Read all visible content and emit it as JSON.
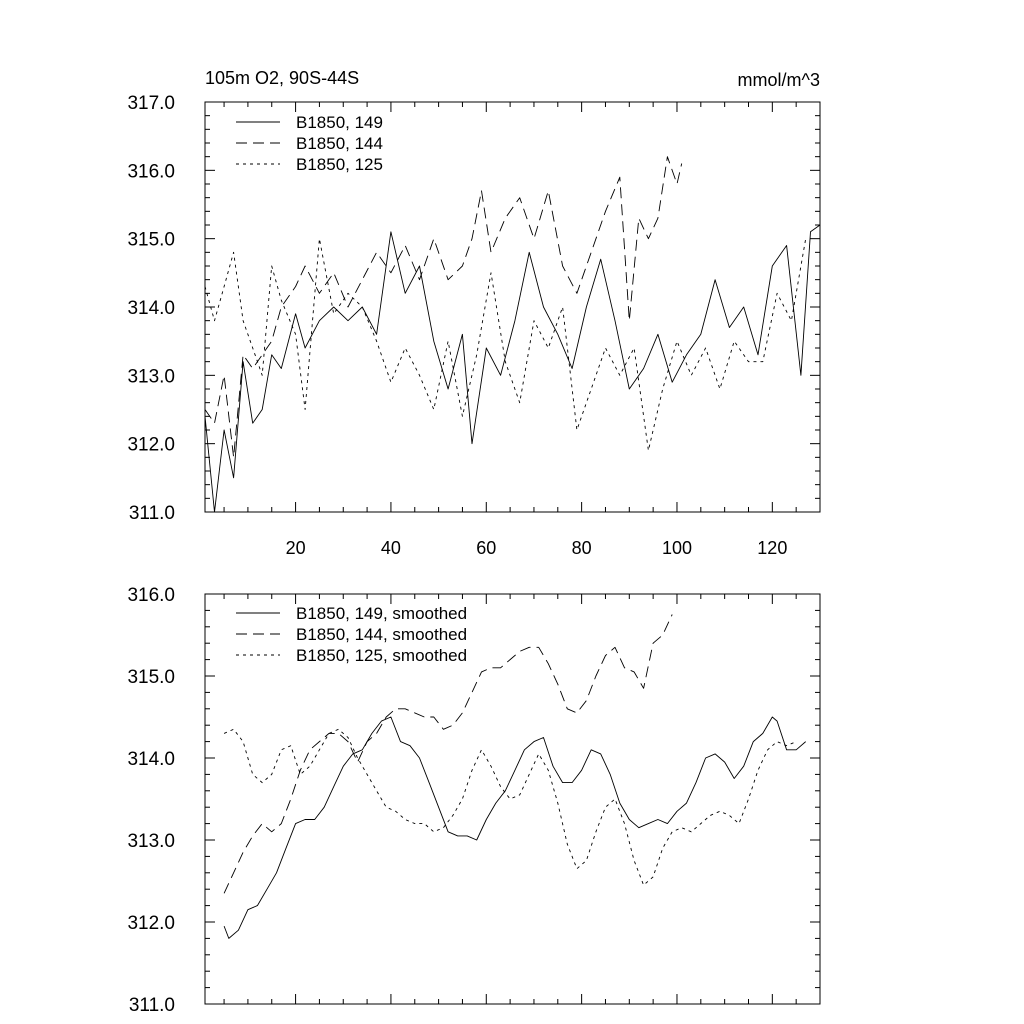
{
  "header": {
    "title": "105m O2, 90S-44S",
    "units": "mmol/m^3"
  },
  "styles": {
    "line_color": "#000000",
    "background": "#ffffff"
  },
  "chart_data": [
    {
      "type": "line",
      "title": "105m O2, 90S-44S",
      "units_label": "mmol/m^3",
      "xlim": [
        1,
        130
      ],
      "ylim": [
        311,
        317
      ],
      "x_ticks": [
        20,
        40,
        60,
        80,
        100,
        120
      ],
      "x_tick_labels": [
        "20",
        "40",
        "60",
        "80",
        "100",
        "120"
      ],
      "y_ticks": [
        311,
        312,
        313,
        314,
        315,
        316,
        317
      ],
      "y_tick_labels": [
        "311.0",
        "312.0",
        "313.0",
        "314.0",
        "315.0",
        "316.0",
        "317.0"
      ],
      "legend_position": "top-left",
      "series": [
        {
          "name": "B1850, 149",
          "style": "solid",
          "x": [
            1,
            3,
            5,
            7,
            9,
            11,
            13,
            15,
            17,
            20,
            22,
            25,
            28,
            31,
            34,
            37,
            40,
            43,
            46,
            49,
            52,
            55,
            57,
            60,
            63,
            66,
            69,
            72,
            75,
            78,
            81,
            84,
            87,
            90,
            93,
            96,
            99,
            102,
            105,
            108,
            111,
            114,
            117,
            120,
            123,
            126,
            128,
            130
          ],
          "values": [
            312.4,
            311.0,
            312.2,
            311.5,
            313.2,
            312.3,
            312.5,
            313.3,
            313.1,
            313.9,
            313.4,
            313.8,
            314.0,
            313.8,
            314.0,
            313.6,
            315.1,
            314.2,
            314.6,
            313.5,
            312.8,
            313.6,
            312.0,
            313.4,
            313.0,
            313.8,
            314.8,
            314.0,
            313.6,
            313.1,
            314.0,
            314.7,
            313.8,
            312.8,
            313.1,
            313.6,
            312.9,
            313.3,
            313.6,
            314.4,
            313.7,
            314.0,
            313.3,
            314.6,
            314.9,
            313.0,
            315.1,
            315.2
          ]
        },
        {
          "name": "B1850, 144",
          "style": "dashed",
          "x": [
            1,
            3,
            5,
            7,
            9,
            11,
            13,
            15,
            17,
            20,
            22,
            25,
            28,
            31,
            34,
            37,
            40,
            43,
            46,
            49,
            52,
            55,
            57,
            59,
            61,
            64,
            67,
            70,
            73,
            76,
            79,
            82,
            85,
            88,
            90,
            92,
            94,
            96,
            98,
            100,
            101
          ],
          "values": [
            312.5,
            312.3,
            313.0,
            311.8,
            313.3,
            313.1,
            313.3,
            313.5,
            314.0,
            314.3,
            314.6,
            314.2,
            314.5,
            314.0,
            314.4,
            314.8,
            314.5,
            314.9,
            314.4,
            315.0,
            314.4,
            314.6,
            315.0,
            315.7,
            314.8,
            315.3,
            315.6,
            315.0,
            315.7,
            314.6,
            314.2,
            314.8,
            315.4,
            315.9,
            313.8,
            315.3,
            315.0,
            315.3,
            316.2,
            315.8,
            316.1
          ]
        },
        {
          "name": "B1850, 125",
          "style": "dotted",
          "x": [
            1,
            3,
            5,
            7,
            9,
            11,
            13,
            15,
            17,
            20,
            22,
            25,
            28,
            31,
            34,
            37,
            40,
            43,
            46,
            49,
            52,
            55,
            58,
            61,
            64,
            67,
            70,
            73,
            76,
            79,
            82,
            85,
            88,
            91,
            94,
            97,
            100,
            103,
            106,
            109,
            112,
            115,
            118,
            121,
            124,
            127
          ],
          "values": [
            314.3,
            313.8,
            314.3,
            314.8,
            313.8,
            313.4,
            313.0,
            314.6,
            314.1,
            313.6,
            312.5,
            315.0,
            313.9,
            314.2,
            314.0,
            313.5,
            312.9,
            313.4,
            313.0,
            312.5,
            313.5,
            312.4,
            313.3,
            314.5,
            313.2,
            312.6,
            313.8,
            313.4,
            314.0,
            312.2,
            312.8,
            313.4,
            313.0,
            313.4,
            311.9,
            312.8,
            313.5,
            313.0,
            313.4,
            312.8,
            313.5,
            313.2,
            313.2,
            314.2,
            313.8,
            315.0
          ]
        }
      ]
    },
    {
      "type": "line",
      "xlim": [
        1,
        130
      ],
      "ylim": [
        311,
        316
      ],
      "x_ticks": [
        20,
        40,
        60,
        80,
        100,
        120
      ],
      "y_ticks": [
        311,
        312,
        313,
        314,
        315,
        316
      ],
      "y_tick_labels": [
        "311.0",
        "312.0",
        "313.0",
        "314.0",
        "315.0",
        "316.0"
      ],
      "legend_position": "top-left",
      "series": [
        {
          "name": "B1850, 149, smoothed",
          "style": "solid",
          "x": [
            5,
            6,
            8,
            10,
            12,
            14,
            16,
            18,
            20,
            22,
            24,
            26,
            28,
            30,
            32,
            34,
            36,
            38,
            40,
            42,
            44,
            46,
            48,
            50,
            52,
            54,
            56,
            58,
            60,
            62,
            64,
            66,
            68,
            70,
            72,
            74,
            76,
            78,
            80,
            82,
            84,
            86,
            88,
            90,
            92,
            94,
            96,
            98,
            100,
            102,
            104,
            106,
            108,
            110,
            112,
            114,
            116,
            118,
            120,
            121,
            123,
            125,
            127
          ],
          "values": [
            311.95,
            311.8,
            311.9,
            312.15,
            312.2,
            312.4,
            312.6,
            312.9,
            313.2,
            313.25,
            313.25,
            313.4,
            313.65,
            313.9,
            314.05,
            314.1,
            314.3,
            314.45,
            314.5,
            314.2,
            314.15,
            314.0,
            313.7,
            313.4,
            313.1,
            313.05,
            313.05,
            313.0,
            313.25,
            313.45,
            313.6,
            313.85,
            314.1,
            314.2,
            314.25,
            313.9,
            313.7,
            313.7,
            313.85,
            314.1,
            314.05,
            313.8,
            313.45,
            313.25,
            313.15,
            313.2,
            313.25,
            313.2,
            313.35,
            313.45,
            313.7,
            314.0,
            314.05,
            313.95,
            313.75,
            313.9,
            314.2,
            314.3,
            314.5,
            314.45,
            314.1,
            314.1,
            314.2
          ]
        },
        {
          "name": "B1850, 144, smoothed",
          "style": "dashed",
          "x": [
            5,
            7,
            9,
            11,
            13,
            15,
            17,
            19,
            21,
            23,
            25,
            27,
            29,
            31,
            33,
            35,
            37,
            39,
            41,
            43,
            45,
            47,
            49,
            51,
            53,
            55,
            57,
            59,
            61,
            63,
            65,
            67,
            69,
            71,
            73,
            75,
            77,
            79,
            81,
            83,
            85,
            87,
            89,
            91,
            93,
            95,
            97,
            99
          ],
          "values": [
            312.35,
            312.6,
            312.85,
            313.05,
            313.2,
            313.1,
            313.2,
            313.5,
            313.85,
            314.1,
            314.2,
            314.3,
            314.3,
            314.2,
            313.95,
            314.2,
            314.3,
            314.5,
            314.6,
            314.6,
            314.55,
            314.5,
            314.5,
            314.35,
            314.4,
            314.55,
            314.8,
            315.05,
            315.1,
            315.1,
            315.2,
            315.3,
            315.35,
            315.35,
            315.15,
            314.9,
            314.6,
            314.55,
            314.7,
            315.0,
            315.25,
            315.35,
            315.1,
            315.05,
            314.85,
            315.4,
            315.5,
            315.75
          ]
        },
        {
          "name": "B1850, 125, smoothed",
          "style": "dotted",
          "x": [
            5,
            7,
            9,
            11,
            13,
            15,
            17,
            19,
            21,
            23,
            25,
            27,
            29,
            31,
            33,
            35,
            37,
            39,
            41,
            43,
            45,
            47,
            49,
            51,
            53,
            55,
            57,
            59,
            61,
            63,
            65,
            67,
            69,
            71,
            73,
            75,
            77,
            79,
            81,
            83,
            85,
            87,
            89,
            91,
            93,
            95,
            97,
            99,
            101,
            103,
            105,
            107,
            109,
            111,
            113,
            115,
            117,
            119,
            121,
            123,
            125
          ],
          "values": [
            314.3,
            314.35,
            314.2,
            313.8,
            313.7,
            313.8,
            314.1,
            314.15,
            313.8,
            313.9,
            314.1,
            314.3,
            314.35,
            314.25,
            314.0,
            313.8,
            313.6,
            313.4,
            313.35,
            313.25,
            313.2,
            313.2,
            313.1,
            313.15,
            313.3,
            313.5,
            313.85,
            314.1,
            313.9,
            313.65,
            313.5,
            313.55,
            313.8,
            314.05,
            313.85,
            313.45,
            312.95,
            312.65,
            312.75,
            313.1,
            313.4,
            313.5,
            313.2,
            312.75,
            312.45,
            312.55,
            312.9,
            313.1,
            313.15,
            313.1,
            313.2,
            313.3,
            313.35,
            313.3,
            313.2,
            313.5,
            313.85,
            314.1,
            314.2,
            314.15,
            314.2
          ]
        }
      ]
    }
  ]
}
